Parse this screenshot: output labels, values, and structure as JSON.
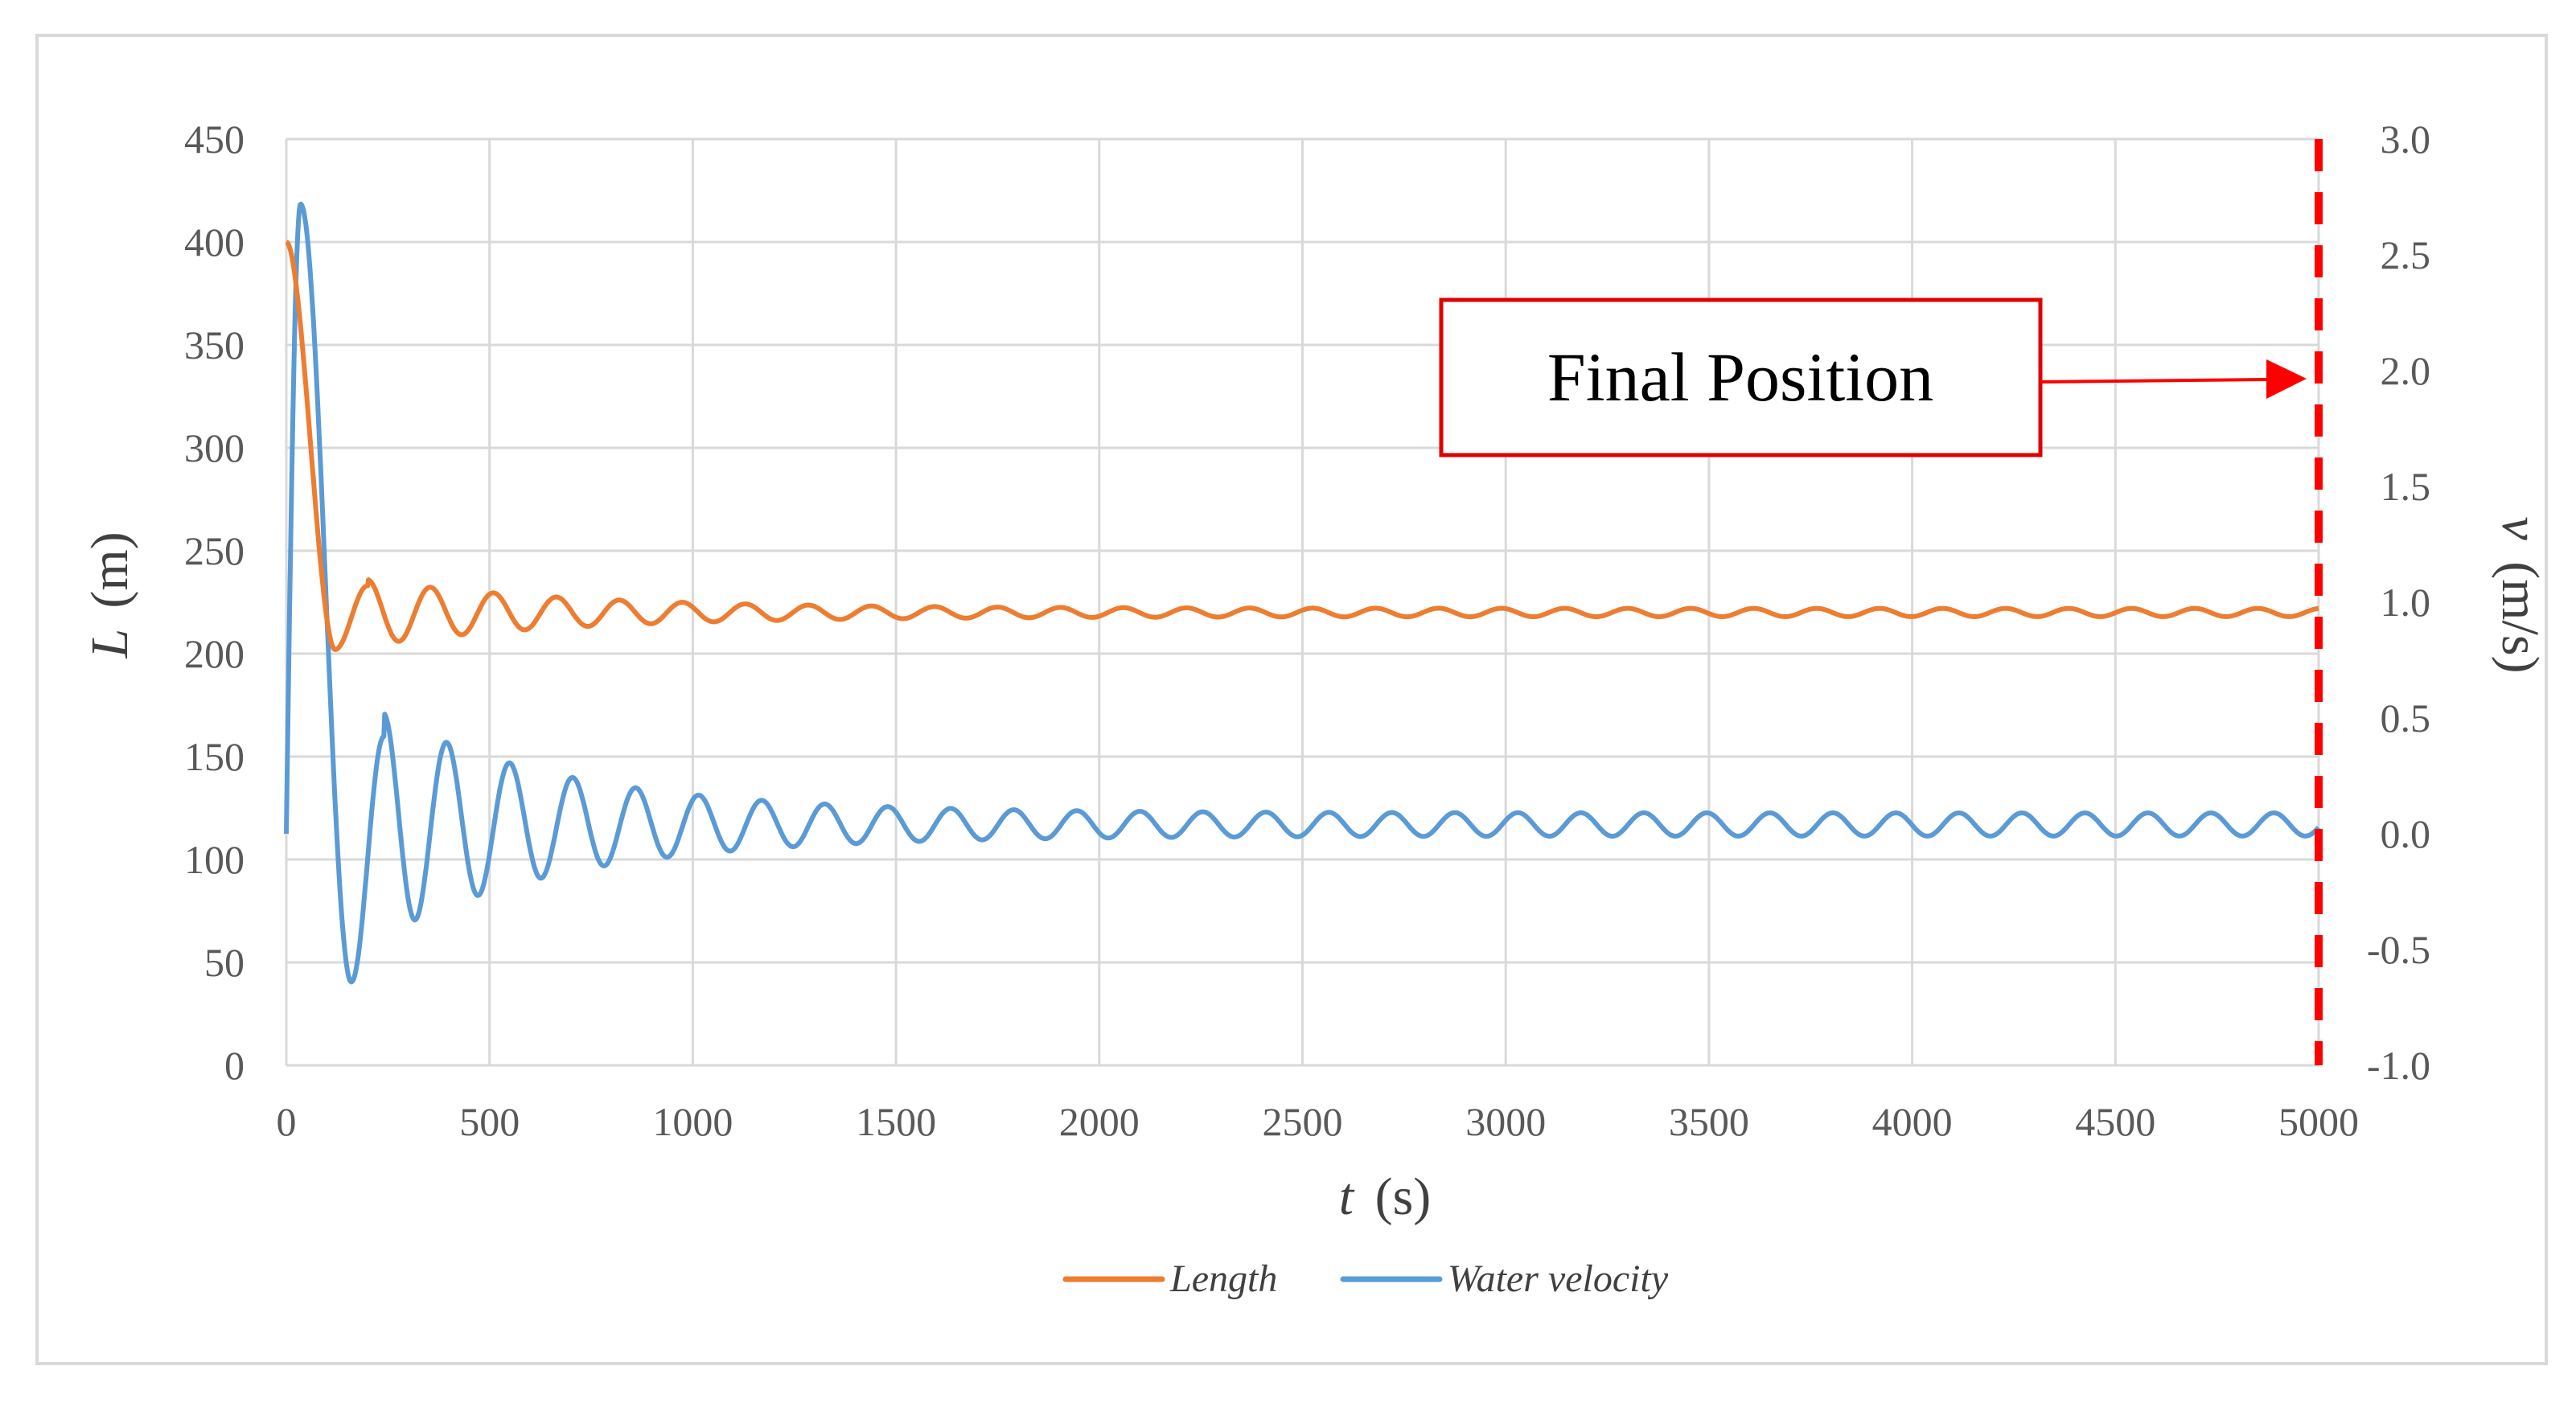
{
  "chart_data": {
    "type": "line",
    "x": {
      "label": "t (s)",
      "label_var": "t",
      "label_unit": "(s)",
      "range": [
        0,
        5000
      ],
      "ticks": [
        0,
        500,
        1000,
        1500,
        2000,
        2500,
        3000,
        3500,
        4000,
        4500,
        5000
      ],
      "tick_labels": [
        "0",
        "500",
        "1000",
        "1500",
        "2000",
        "2500",
        "3000",
        "3500",
        "4000",
        "4500",
        "5000"
      ]
    },
    "y_left": {
      "label": "L (m)",
      "label_var": "L",
      "label_unit": "(m)",
      "range": [
        0,
        450
      ],
      "ticks": [
        0,
        50,
        100,
        150,
        200,
        250,
        300,
        350,
        400,
        450
      ],
      "tick_labels": [
        "0",
        "50",
        "100",
        "150",
        "200",
        "250",
        "300",
        "350",
        "400",
        "450"
      ]
    },
    "y_right": {
      "label": "v (m/s)",
      "label_var": "v",
      "label_unit": "(m/s)",
      "range": [
        -1.0,
        3.0
      ],
      "ticks": [
        -1.0,
        -0.5,
        0.0,
        0.5,
        1.0,
        1.5,
        2.0,
        2.5,
        3.0
      ],
      "tick_labels": [
        "-1.0",
        "-0.5",
        "0.0",
        "0.5",
        "1.0",
        "1.5",
        "2.0",
        "2.5",
        "3.0"
      ]
    },
    "grid": true,
    "legend_position": "bottom",
    "series": [
      {
        "name": "Length",
        "axis": "left",
        "color": "#ED7D31",
        "model": {
          "start_value": 400,
          "steady_value": 220,
          "first_min": {
            "t": 120,
            "value": 202
          },
          "first_peak": {
            "t": 200,
            "value": 233
          },
          "period": 155,
          "initial_amplitude": 16,
          "late_amplitude": 2,
          "decay_time": 500
        }
      },
      {
        "name": "Water velocity",
        "axis": "right",
        "color": "#5B9BD5",
        "model": {
          "start_value": 0.0,
          "first_peak": {
            "t": 35,
            "value": 2.72
          },
          "first_min": {
            "t": 160,
            "value": -0.64
          },
          "second_peak": {
            "t": 240,
            "value": 0.42
          },
          "steady_value": 0.04,
          "period": 155,
          "initial_amplitude": 0.48,
          "late_amplitude": 0.05,
          "decay_time": 450
        }
      }
    ],
    "annotations": [
      {
        "text": "Final Position",
        "points_to": {
          "t": 5000,
          "v": 2.0
        },
        "color": "#FF0000"
      }
    ],
    "marker_line": {
      "t": 5000,
      "color": "#FF0000",
      "style": "dashed"
    }
  }
}
